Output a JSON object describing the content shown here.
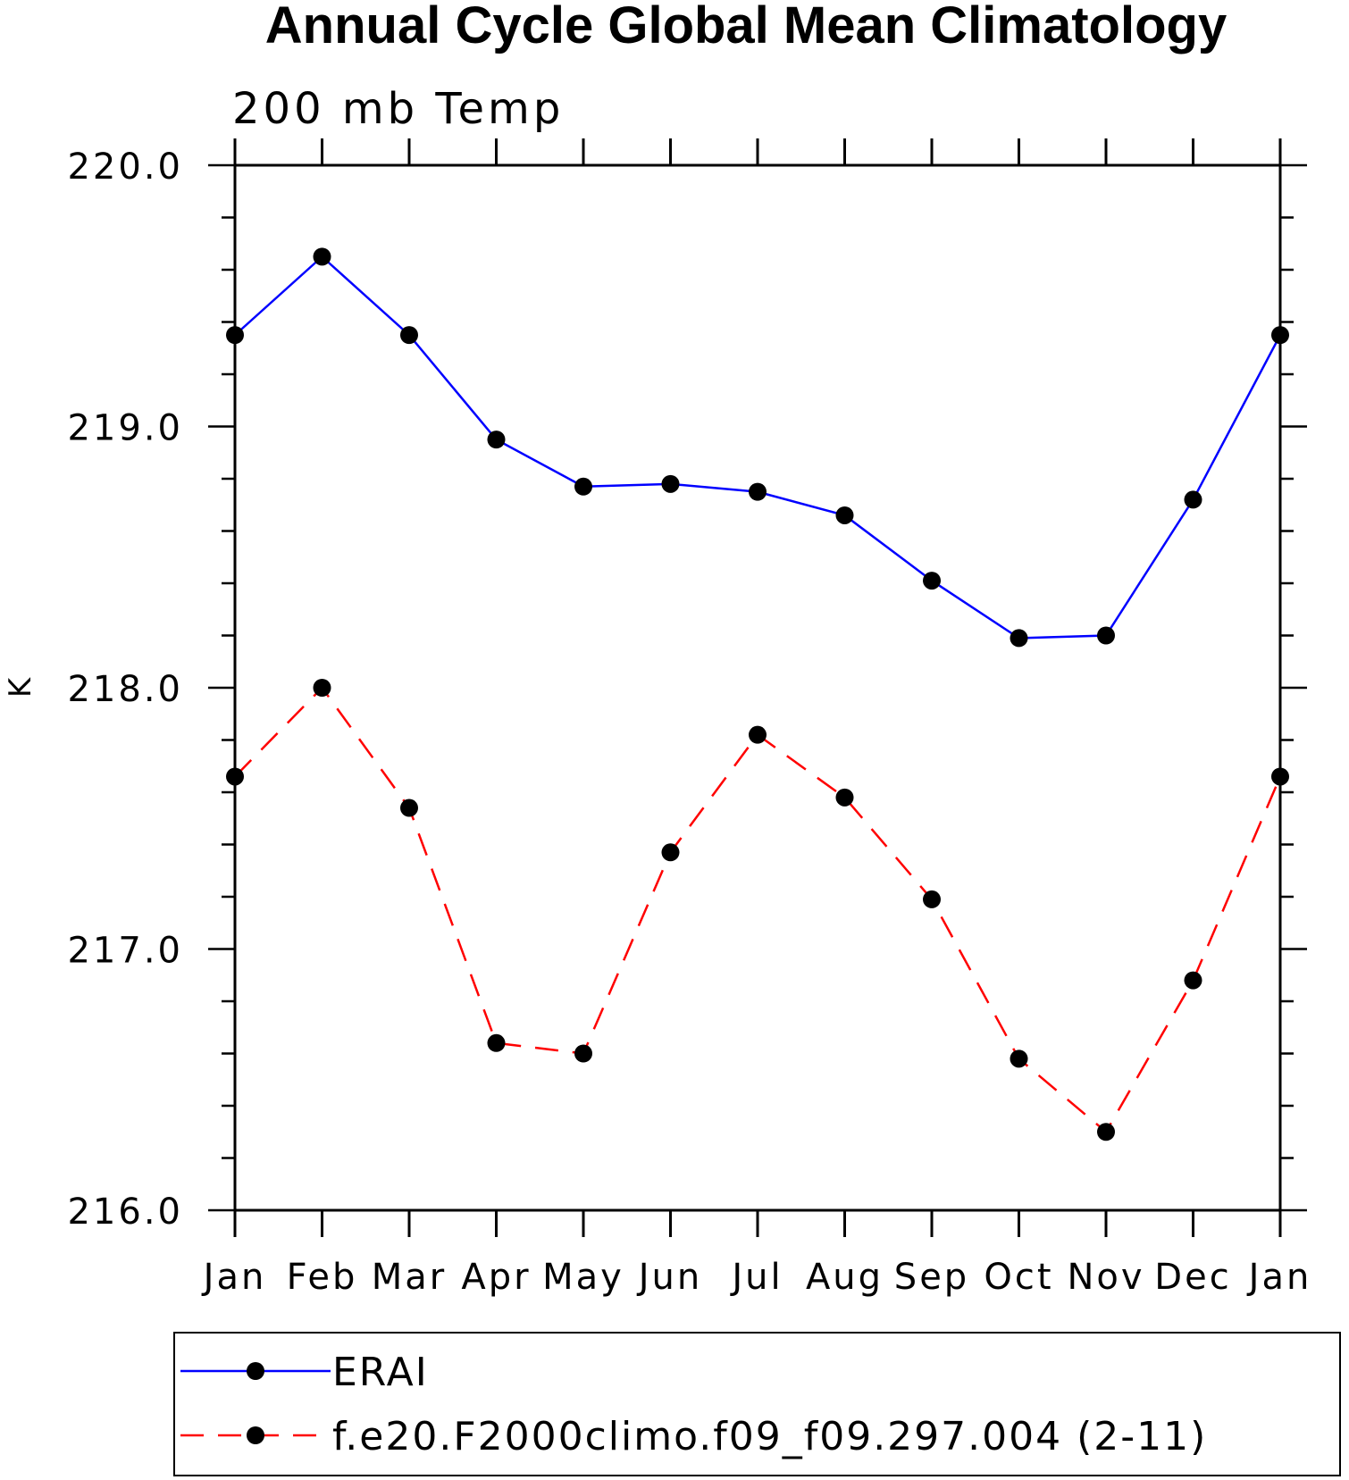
{
  "chart_data": {
    "type": "line",
    "title": "Annual Cycle Global Mean Climatology",
    "subtitle": "200 mb Temp",
    "ylabel": "K",
    "xlabel": "",
    "categories": [
      "Jan",
      "Feb",
      "Mar",
      "Apr",
      "May",
      "Jun",
      "Jul",
      "Aug",
      "Sep",
      "Oct",
      "Nov",
      "Dec",
      "Jan"
    ],
    "ylim": [
      216.0,
      220.0
    ],
    "yticks": [
      "216.0",
      "217.0",
      "218.0",
      "219.0",
      "220.0"
    ],
    "series": [
      {
        "name": "ERAI",
        "color": "#0000ff",
        "dash": "solid",
        "values": [
          219.35,
          219.65,
          219.35,
          218.95,
          218.77,
          218.78,
          218.75,
          218.66,
          218.41,
          218.19,
          218.2,
          218.72,
          219.35
        ]
      },
      {
        "name": "f.e20.F2000climo.f09_f09.297.004 (2-11)",
        "color": "#ff0000",
        "dash": "dashed",
        "values": [
          217.66,
          218.0,
          217.54,
          216.64,
          216.6,
          217.37,
          217.82,
          217.58,
          217.19,
          216.58,
          216.3,
          216.88,
          217.66
        ]
      }
    ],
    "legend_position": "bottom"
  }
}
